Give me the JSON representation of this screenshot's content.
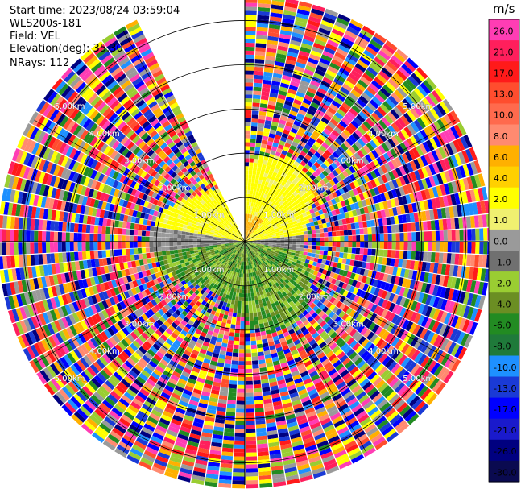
{
  "header": {
    "start_time": "Start time: 2023/08/24 03:59:04",
    "instrument": "WLS200s-181",
    "field": "Field: VEL",
    "elevation": "Elevation(deg): 35.30",
    "nrays": "NRays: 112"
  },
  "chart_data": {
    "type": "heatmap",
    "projection": "polar-ppi",
    "field": "VEL",
    "units": "m/s",
    "range_max_km": 5.5,
    "range_rings_km": [
      1,
      2,
      3,
      4,
      5
    ],
    "ring_labels": [
      "1.00km",
      "2.00km",
      "3.00km",
      "4.00km",
      "5.00km"
    ],
    "missing_sector_deg": [
      -27,
      0
    ],
    "colorbar": {
      "label": "m/s",
      "ticks": [
        "26.0",
        "21.0",
        "17.0",
        "13.0",
        "10.0",
        "8.0",
        "6.0",
        "4.0",
        "2.0",
        "1.0",
        "0.0",
        "-1.0",
        "-2.0",
        "-4.0",
        "-6.0",
        "-8.0",
        "-10.0",
        "-13.0",
        "-17.0",
        "-21.0",
        "-26.0",
        "-30.0"
      ],
      "colors": [
        "#ff3db4",
        "#ff1f5c",
        "#ff1a1a",
        "#ff4d2e",
        "#ff6a4d",
        "#ff8a70",
        "#ffb000",
        "#ffd000",
        "#ffff00",
        "#f0f070",
        "#9a9a9a",
        "#707070",
        "#9acd32",
        "#6b8e23",
        "#228b22",
        "#1f7a3a",
        "#1e90ff",
        "#1a3ad6",
        "#0000ff",
        "#1a1acc",
        "#000080",
        "#0a0a50"
      ]
    }
  }
}
